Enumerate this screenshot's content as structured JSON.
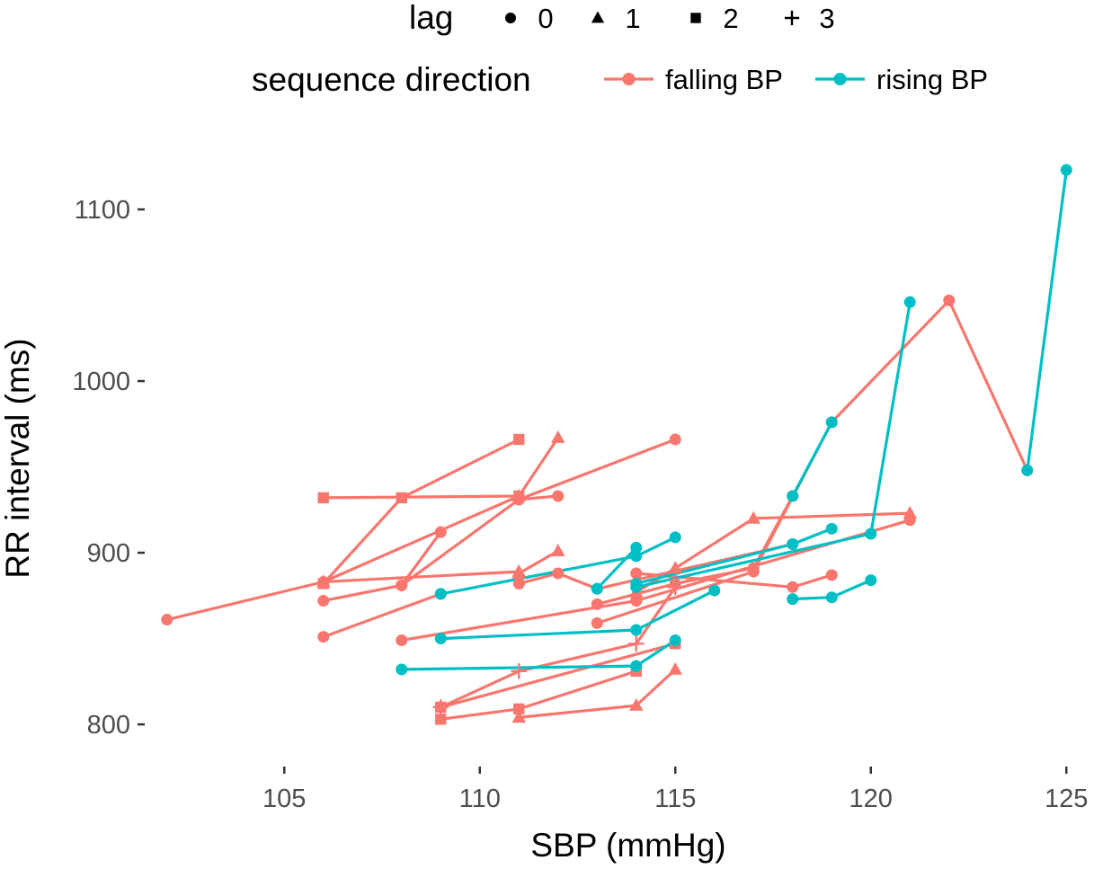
{
  "chart_data": {
    "type": "line",
    "xlabel": "SBP (mmHg)",
    "ylabel": "RR interval (ms)",
    "xlim": [
      101.5,
      125.5
    ],
    "ylim": [
      777,
      1133
    ],
    "xticks": [
      105,
      110,
      115,
      120,
      125
    ],
    "yticks": [
      800,
      900,
      1000,
      1100
    ],
    "grid": false,
    "legend_position": "top",
    "legends": {
      "shape": {
        "title": "lag",
        "entries": [
          {
            "label": "0",
            "shape": "circle"
          },
          {
            "label": "1",
            "shape": "triangle"
          },
          {
            "label": "2",
            "shape": "square"
          },
          {
            "label": "3",
            "shape": "plus"
          }
        ]
      },
      "color": {
        "title": "sequence direction",
        "entries": [
          {
            "label": "falling BP",
            "color": "#F8766D"
          },
          {
            "label": "rising BP",
            "color": "#00BFC4"
          }
        ]
      }
    },
    "series": [
      {
        "direction": "falling BP",
        "lag": 0,
        "x": [
          102,
          106
        ],
        "y": [
          861,
          883
        ]
      },
      {
        "direction": "falling BP",
        "lag": 0,
        "x": [
          106,
          108,
          109
        ],
        "y": [
          872,
          881,
          912
        ]
      },
      {
        "direction": "falling BP",
        "lag": 0,
        "x": [
          106,
          109
        ],
        "y": [
          851,
          876
        ]
      },
      {
        "direction": "falling BP",
        "lag": 0,
        "x": [
          108,
          111,
          112
        ],
        "y": [
          881,
          931,
          933
        ]
      },
      {
        "direction": "falling BP",
        "lag": 0,
        "x": [
          108,
          114
        ],
        "y": [
          849,
          872
        ]
      },
      {
        "direction": "falling BP",
        "lag": 0,
        "x": [
          111,
          115
        ],
        "y": [
          931,
          966
        ]
      },
      {
        "direction": "falling BP",
        "lag": 0,
        "x": [
          111,
          112,
          113,
          118
        ],
        "y": [
          882,
          888,
          879,
          905
        ]
      },
      {
        "direction": "falling BP",
        "lag": 0,
        "x": [
          113,
          115,
          117,
          118
        ],
        "y": [
          870,
          882,
          891,
          933
        ]
      },
      {
        "direction": "falling BP",
        "lag": 0,
        "x": [
          113,
          117,
          119,
          122,
          124
        ],
        "y": [
          859,
          889,
          976,
          1047,
          948
        ]
      },
      {
        "direction": "falling BP",
        "lag": 0,
        "x": [
          114,
          118,
          119
        ],
        "y": [
          888,
          880,
          887
        ]
      },
      {
        "direction": "falling BP",
        "lag": 0,
        "x": [
          114,
          121
        ],
        "y": [
          872,
          919
        ]
      },
      {
        "direction": "falling BP",
        "lag": 1,
        "x": [
          106,
          111
        ],
        "y": [
          883,
          889
        ]
      },
      {
        "direction": "falling BP",
        "lag": 1,
        "x": [
          106,
          111,
          112
        ],
        "y": [
          883,
          933,
          967
        ]
      },
      {
        "direction": "falling BP",
        "lag": 1,
        "x": [
          111,
          112
        ],
        "y": [
          888,
          901
        ]
      },
      {
        "direction": "falling BP",
        "lag": 1,
        "x": [
          111,
          114,
          115
        ],
        "y": [
          804,
          811,
          832
        ]
      },
      {
        "direction": "falling BP",
        "lag": 1,
        "x": [
          114,
          115,
          117,
          121
        ],
        "y": [
          877,
          891,
          920,
          923
        ]
      },
      {
        "direction": "falling BP",
        "lag": 2,
        "x": [
          106,
          111
        ],
        "y": [
          932,
          933
        ]
      },
      {
        "direction": "falling BP",
        "lag": 2,
        "x": [
          106,
          108,
          111
        ],
        "y": [
          882,
          932,
          966
        ]
      },
      {
        "direction": "falling BP",
        "lag": 2,
        "x": [
          109,
          111,
          114
        ],
        "y": [
          803,
          809,
          831
        ]
      },
      {
        "direction": "falling BP",
        "lag": 2,
        "x": [
          109,
          115
        ],
        "y": [
          810,
          847
        ]
      },
      {
        "direction": "falling BP",
        "lag": 3,
        "x": [
          109,
          111,
          114,
          115
        ],
        "y": [
          810,
          831,
          847,
          880
        ]
      },
      {
        "direction": "rising BP",
        "lag": 0,
        "x": [
          108,
          114,
          115
        ],
        "y": [
          832,
          834,
          849
        ]
      },
      {
        "direction": "rising BP",
        "lag": 0,
        "x": [
          109,
          114,
          116
        ],
        "y": [
          850,
          855,
          878
        ]
      },
      {
        "direction": "rising BP",
        "lag": 0,
        "x": [
          109,
          114,
          115
        ],
        "y": [
          876,
          898,
          909
        ]
      },
      {
        "direction": "rising BP",
        "lag": 0,
        "x": [
          113,
          114
        ],
        "y": [
          879,
          903
        ]
      },
      {
        "direction": "rising BP",
        "lag": 0,
        "x": [
          114,
          118,
          119
        ],
        "y": [
          882,
          905,
          914
        ]
      },
      {
        "direction": "rising BP",
        "lag": 0,
        "x": [
          114,
          120,
          121
        ],
        "y": [
          880,
          911,
          1046
        ]
      },
      {
        "direction": "rising BP",
        "lag": 0,
        "x": [
          118,
          119,
          120
        ],
        "y": [
          873,
          874,
          884
        ]
      },
      {
        "direction": "rising BP",
        "lag": 0,
        "x": [
          118,
          119
        ],
        "y": [
          933,
          976
        ]
      },
      {
        "direction": "rising BP",
        "lag": 0,
        "x": [
          124,
          125
        ],
        "y": [
          948,
          1123
        ]
      }
    ]
  }
}
